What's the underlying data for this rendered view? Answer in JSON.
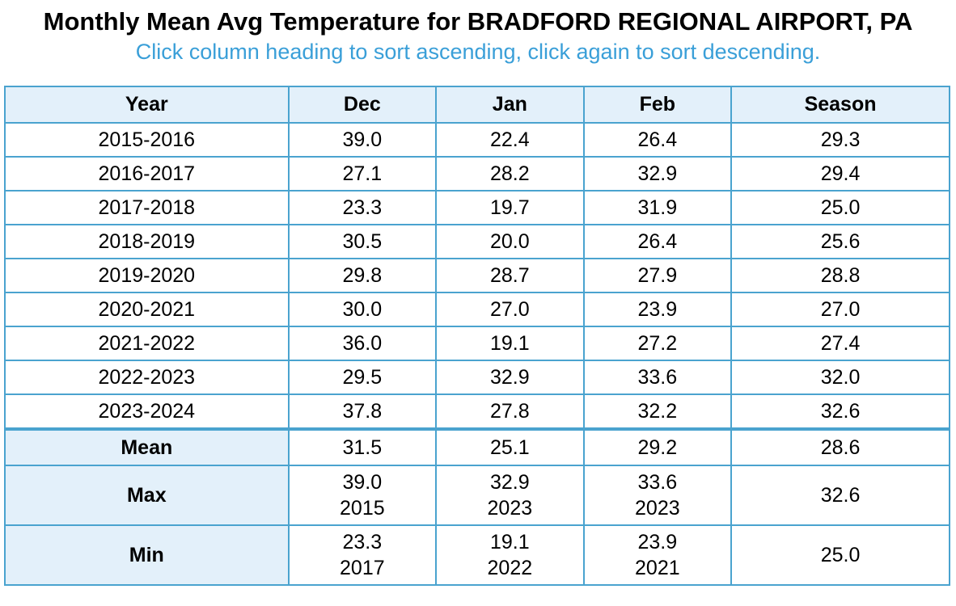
{
  "title": "Monthly Mean Avg Temperature for BRADFORD REGIONAL AIRPORT, PA",
  "subtitle": "Click column heading to sort ascending, click again to sort descending.",
  "headers": [
    "Year",
    "Dec",
    "Jan",
    "Feb",
    "Season"
  ],
  "rows": [
    [
      "2015-2016",
      "39.0",
      "22.4",
      "26.4",
      "29.3"
    ],
    [
      "2016-2017",
      "27.1",
      "28.2",
      "32.9",
      "29.4"
    ],
    [
      "2017-2018",
      "23.3",
      "19.7",
      "31.9",
      "25.0"
    ],
    [
      "2018-2019",
      "30.5",
      "20.0",
      "26.4",
      "25.6"
    ],
    [
      "2019-2020",
      "29.8",
      "28.7",
      "27.9",
      "28.8"
    ],
    [
      "2020-2021",
      "30.0",
      "27.0",
      "23.9",
      "27.0"
    ],
    [
      "2021-2022",
      "36.0",
      "19.1",
      "27.2",
      "27.4"
    ],
    [
      "2022-2023",
      "29.5",
      "32.9",
      "33.6",
      "32.0"
    ],
    [
      "2023-2024",
      "37.8",
      "27.8",
      "32.2",
      "32.6"
    ]
  ],
  "summary": {
    "mean": {
      "label": "Mean",
      "dec": "31.5",
      "jan": "25.1",
      "feb": "29.2",
      "season": "28.6"
    },
    "max": {
      "label": "Max",
      "dec": "39.0",
      "dec_year": "2015",
      "jan": "32.9",
      "jan_year": "2023",
      "feb": "33.6",
      "feb_year": "2023",
      "season": "32.6"
    },
    "min": {
      "label": "Min",
      "dec": "23.3",
      "dec_year": "2017",
      "jan": "19.1",
      "jan_year": "2022",
      "feb": "23.9",
      "feb_year": "2021",
      "season": "25.0"
    }
  }
}
